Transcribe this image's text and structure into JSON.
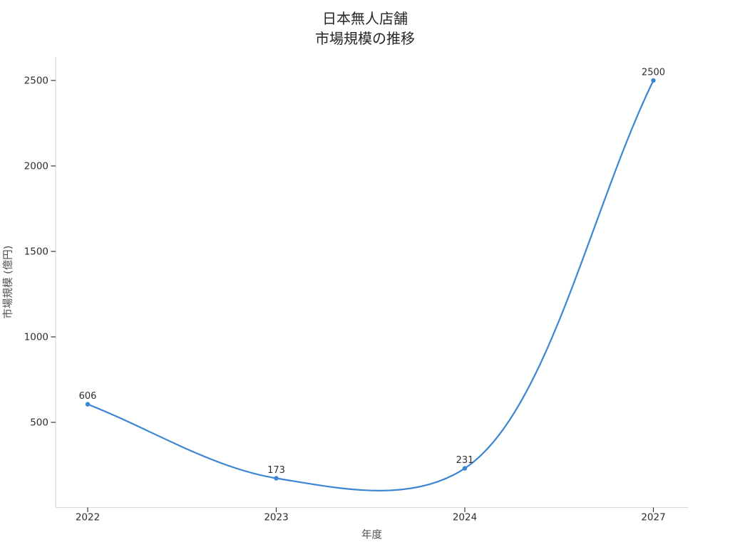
{
  "chart_data": {
    "type": "line",
    "title": "日本無人店舗\n市場規模の推移",
    "title_line1": "日本無人店舗",
    "title_line2": "市場規模の推移",
    "xlabel": "年度",
    "ylabel": "市場規模 (億円)",
    "categories": [
      "2022",
      "2023",
      "2024",
      "2027"
    ],
    "values": [
      606,
      173,
      231,
      2500
    ],
    "point_labels": [
      "606",
      "173",
      "231",
      "2500"
    ],
    "yticks": [
      500,
      1000,
      1500,
      2000,
      2500
    ],
    "ylim": [
      0,
      2637
    ],
    "grid": false,
    "legend": false,
    "smooth": true,
    "colors": {
      "line": "#3c85d3",
      "marker": "#3c85d3",
      "tick_text": "#2e2e2e",
      "point_label_text": "#2e2e2e",
      "axis_label_text": "#4f4f4f",
      "title_text": "#262626",
      "spine": "#d9d9d9",
      "tick_mark": "#333333",
      "background": "#ffffff"
    }
  }
}
